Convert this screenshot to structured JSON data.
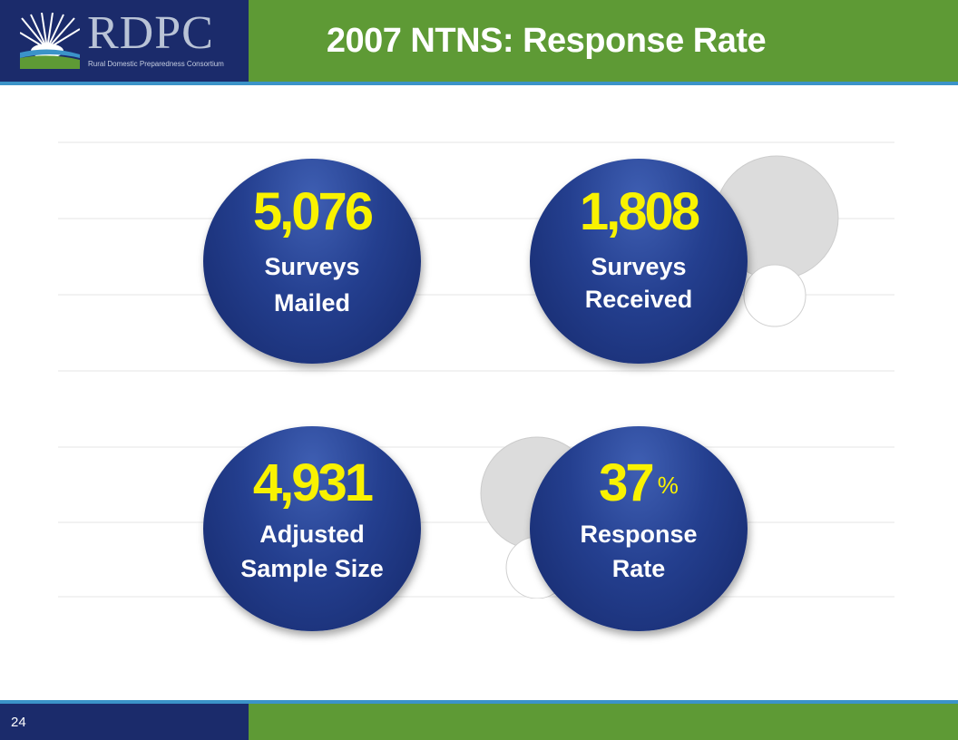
{
  "logo": {
    "name": "RDPC",
    "tagline": "Rural Domestic Preparedness Consortium"
  },
  "slide": {
    "title": "2007 NTNS: Response Rate",
    "page_number": "24"
  },
  "stats": [
    {
      "value": "5,076",
      "line1": "Surveys",
      "line2": "Mailed"
    },
    {
      "value": "1,808",
      "line1": "Surveys",
      "line2": "Received"
    },
    {
      "value": "4,931",
      "line1": "Adjusted",
      "line2": "Sample Size"
    },
    {
      "value": "37",
      "unit": "%",
      "line1": "Response",
      "line2": "Rate"
    }
  ],
  "colors": {
    "navy": "#1b2b6b",
    "green": "#5e9a35",
    "accent_blue": "#3b93c8",
    "number_yellow": "#f9f200"
  }
}
